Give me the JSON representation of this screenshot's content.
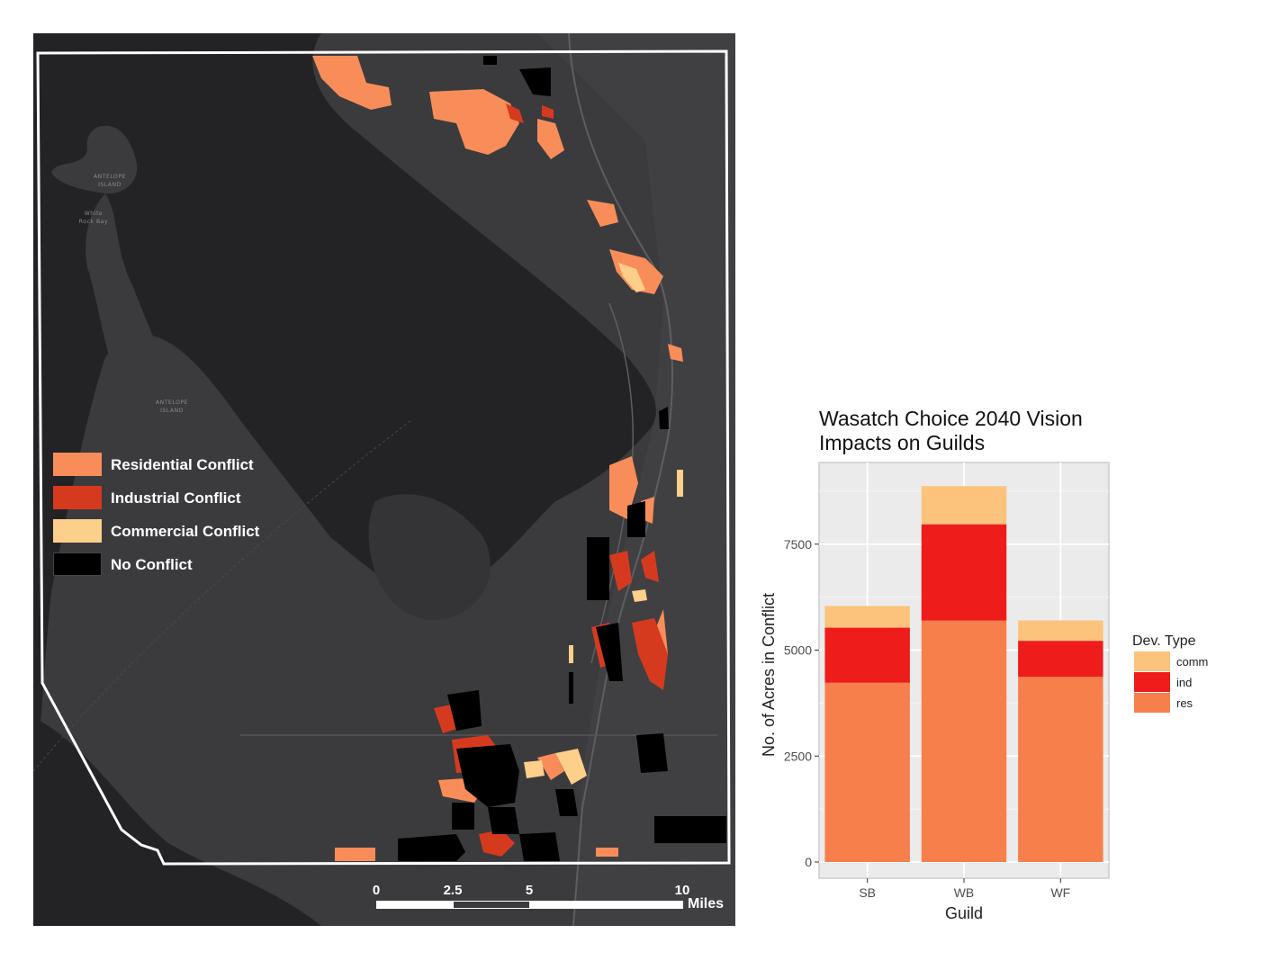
{
  "map": {
    "place_labels": {
      "antelope_island_north": [
        "ANTELOPE",
        "ISLAND"
      ],
      "white_rock_bay": [
        "White",
        "Rock Bay"
      ],
      "antelope_island_south": [
        "ANTELOPE",
        "ISLAND"
      ]
    },
    "legend": [
      {
        "label": "Residential Conflict",
        "color": "#f98d5a"
      },
      {
        "label": "Industrial Conflict",
        "color": "#d63a1e"
      },
      {
        "label": "Commercial Conflict",
        "color": "#fdcf8a"
      },
      {
        "label": "No Conflict",
        "color": "#000000"
      }
    ],
    "scale_bar": {
      "ticks": [
        "0",
        "2.5",
        "5",
        "10"
      ],
      "unit": "Miles"
    },
    "colors": {
      "water": "#232326",
      "land": "#3b3b3d",
      "land_light": "#48484b",
      "study_area_outline": "#ffffff"
    }
  },
  "chart_data": {
    "type": "bar",
    "stacked": true,
    "title": "Wasatch Choice 2040 Vision\nImpacts on Guilds",
    "xlabel": "Guild",
    "ylabel": "No. of Acres in Conflict",
    "categories": [
      "SB",
      "WB",
      "WF"
    ],
    "series": [
      {
        "name": "res",
        "color": "#f77f4b",
        "values": [
          4230,
          5700,
          4370
        ]
      },
      {
        "name": "ind",
        "color": "#ef1c1c",
        "values": [
          1300,
          2270,
          850
        ]
      },
      {
        "name": "comm",
        "color": "#fbc37b",
        "values": [
          510,
          900,
          480
        ]
      }
    ],
    "ylim": [
      0,
      9300
    ],
    "yticks": [
      "0",
      "2500",
      "5000",
      "7500"
    ],
    "legend_title": "Dev. Type",
    "legend_order": [
      "comm",
      "ind",
      "res"
    ],
    "legend_position": "right",
    "grid": true
  }
}
